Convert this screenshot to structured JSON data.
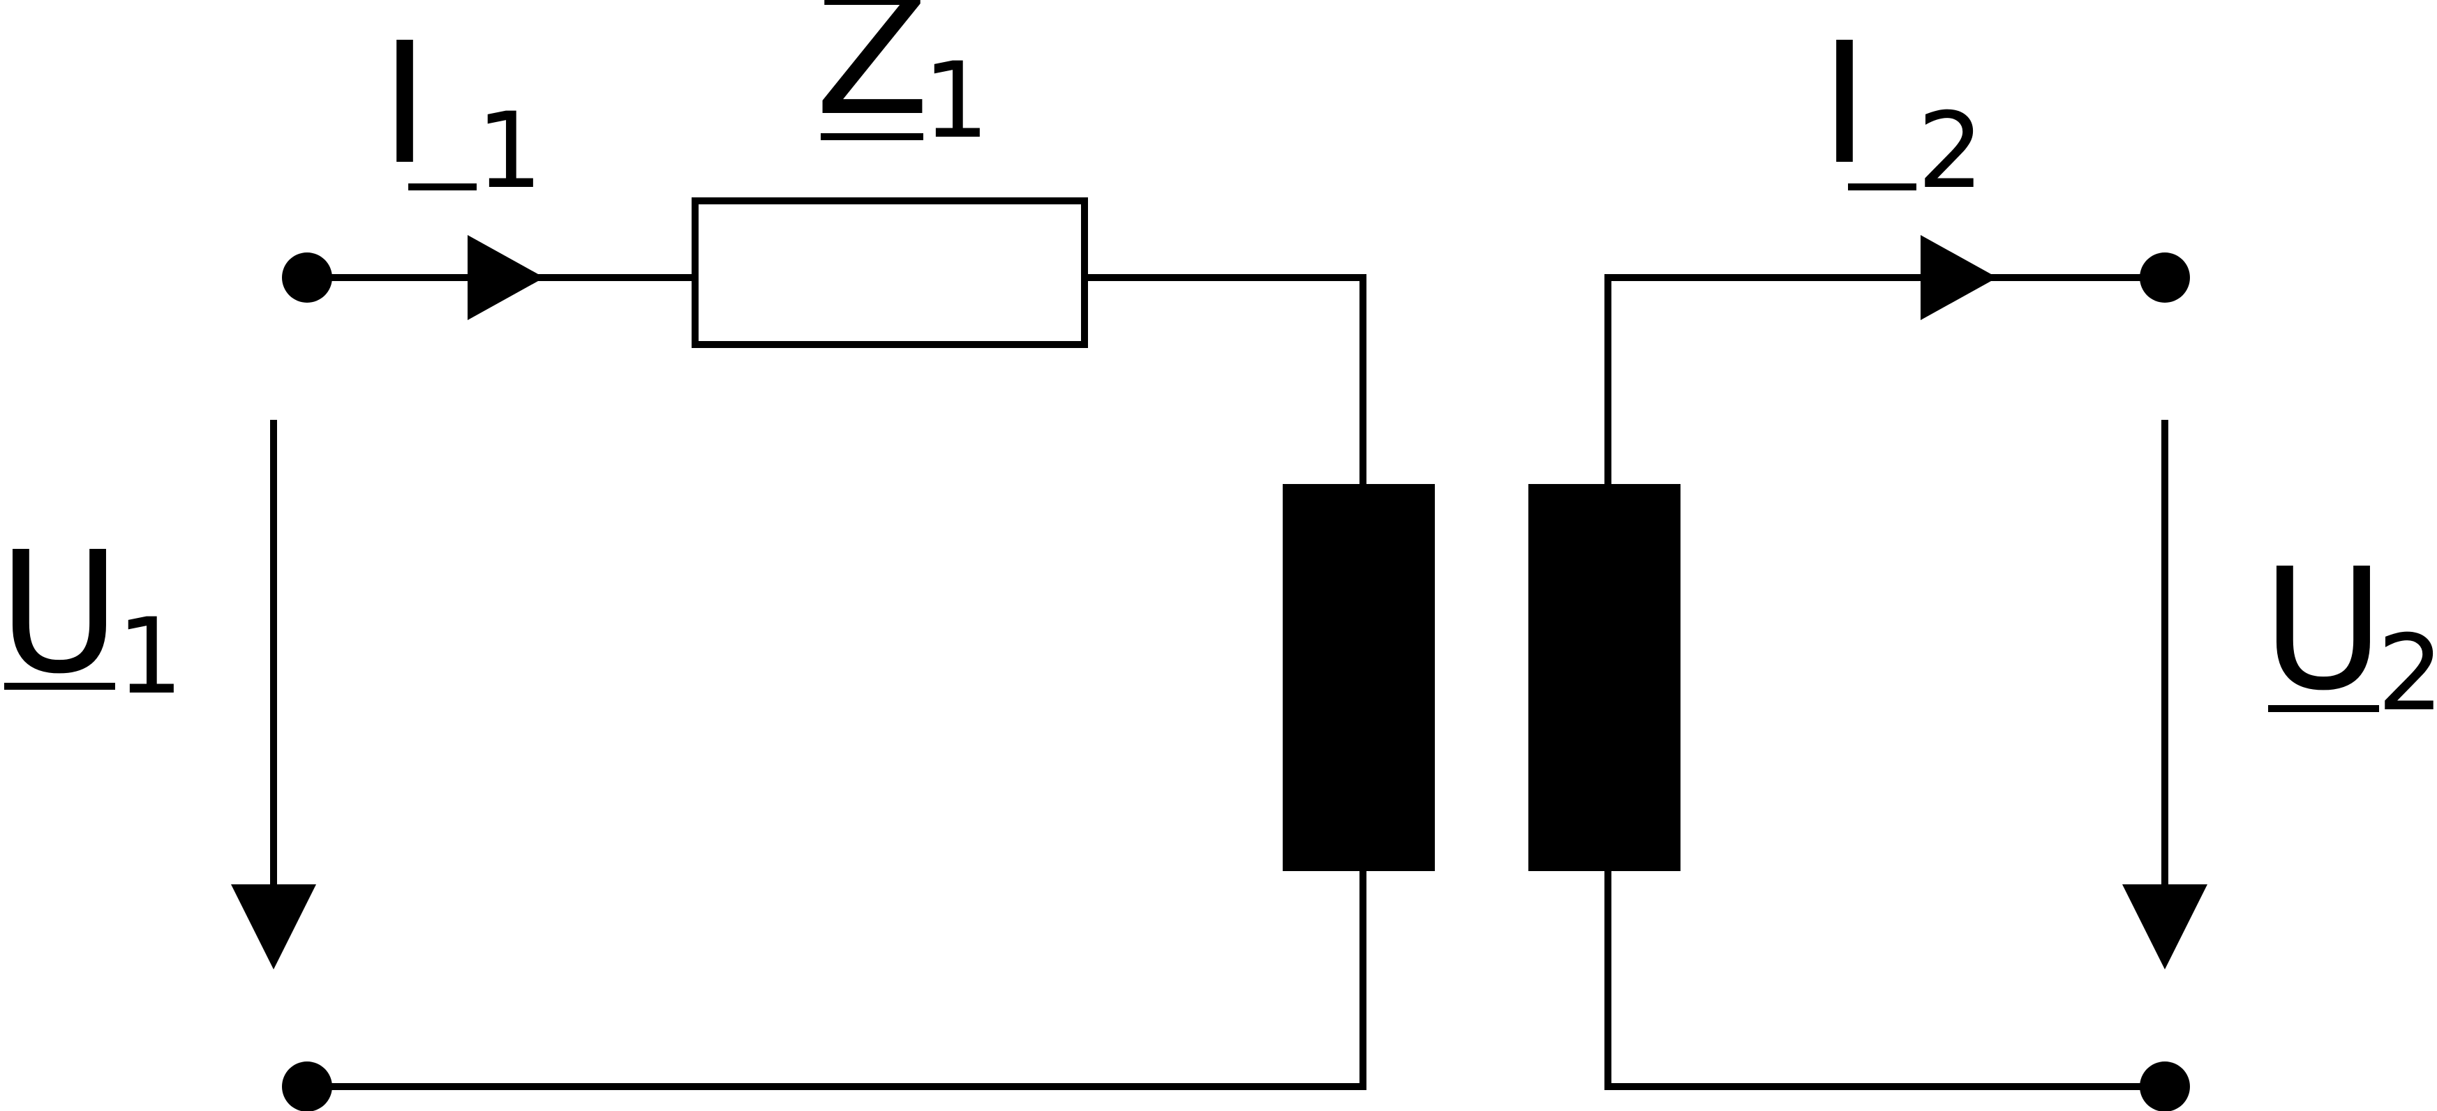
{
  "diagram": {
    "type": "equivalent-circuit",
    "colors": {
      "stroke": "#000000",
      "background": "#ffffff"
    },
    "labels": {
      "current_in": {
        "symbol": "I",
        "subscript": "1",
        "underlined": true
      },
      "impedance": {
        "symbol": "Z",
        "subscript": "1",
        "underlined": true
      },
      "current_out": {
        "symbol": "I",
        "subscript": "2",
        "underlined": true
      },
      "voltage_in": {
        "symbol": "U",
        "subscript": "1",
        "underlined": true
      },
      "voltage_out": {
        "symbol": "U",
        "subscript": "2",
        "underlined": true
      }
    },
    "components": {
      "series_impedance": {
        "name": "Z1",
        "style": "rectangle-outline"
      },
      "transformer": {
        "windings": 2,
        "style": "filled-blocks"
      }
    },
    "terminals": 4
  }
}
